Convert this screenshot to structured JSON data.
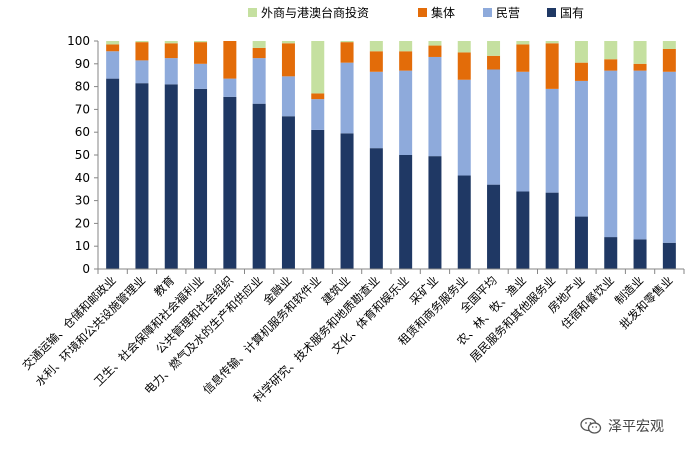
{
  "chart_data": {
    "type": "bar",
    "stacked": true,
    "title": "",
    "xlabel": "",
    "ylabel": "",
    "ylim": [
      0,
      100
    ],
    "yticks": [
      0,
      10,
      20,
      30,
      40,
      50,
      60,
      70,
      80,
      90,
      100
    ],
    "legend_position": "top",
    "categories": [
      "交通运输、仓储和邮政业",
      "水利、环境和公共设施管理业",
      "教育",
      "卫生、社会保障和社会福利业",
      "公共管理和社会组织",
      "电力、燃气及水的生产和供应业",
      "金融业",
      "信息传输、计算机服务和软件业",
      "建筑业",
      "科学研究、技术服务和地质勘查业",
      "文化、体育和娱乐业",
      "采矿业",
      "租赁和商务服务业",
      "全国平均",
      "农、林、牧、渔业",
      "居民服务和其他服务业",
      "房地产业",
      "住宿和餐饮业",
      "制造业",
      "批发和零售业"
    ],
    "series": [
      {
        "name": "国有",
        "color": "#1f3864",
        "values": [
          83.5,
          81.5,
          81,
          79,
          75.5,
          72.5,
          67,
          61,
          59.5,
          53,
          50,
          49.5,
          41,
          37,
          34,
          33.5,
          23,
          14,
          13,
          11.5
        ]
      },
      {
        "name": "民营",
        "color": "#8eaadb",
        "values": [
          12,
          10,
          11.5,
          11,
          8,
          20,
          17.5,
          13.5,
          31,
          33.5,
          37,
          43.5,
          42,
          50.5,
          52.5,
          45.5,
          59.5,
          73,
          74,
          75
        ]
      },
      {
        "name": "集体",
        "color": "#e36c09",
        "values": [
          3,
          8,
          6.5,
          9.5,
          16.5,
          4.5,
          14.5,
          2.5,
          9,
          9,
          8.5,
          5,
          12,
          6,
          12,
          20,
          8,
          5,
          3,
          10
        ]
      },
      {
        "name": "外商与港澳台商投资",
        "color": "#c5e0a0",
        "values": [
          1.5,
          0.5,
          1,
          0.5,
          0,
          3,
          1,
          23,
          0.5,
          4.5,
          4.5,
          2,
          5,
          6.5,
          1.5,
          1,
          9.5,
          8,
          10,
          3.5
        ]
      }
    ],
    "legend_order": [
      "外商与港澳台商投资",
      "集体",
      "民营",
      "国有"
    ]
  },
  "watermark": {
    "icon": "wechat-icon",
    "text": "泽平宏观"
  }
}
